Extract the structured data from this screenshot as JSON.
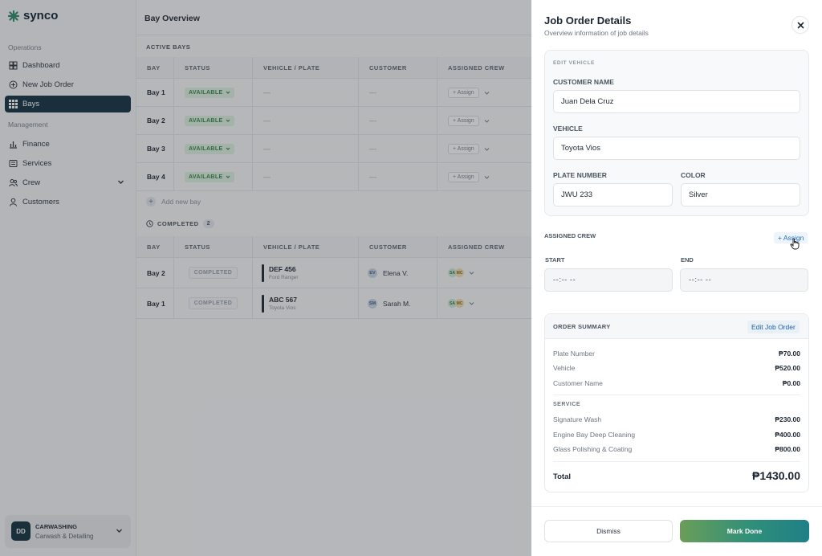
{
  "app": {
    "logo_text": "synco"
  },
  "sidebar": {
    "section_operations": "Operations",
    "section_management": "Management",
    "items": [
      {
        "label": "Dashboard",
        "icon": "dashboard-icon"
      },
      {
        "label": "New Job Order",
        "icon": "plus-circle-icon"
      },
      {
        "label": "Bays",
        "icon": "grid-icon",
        "active": true
      },
      {
        "label": "Finance",
        "icon": "bar-chart-icon"
      },
      {
        "label": "Services",
        "icon": "list-icon"
      },
      {
        "label": "Crew",
        "icon": "users-icon"
      },
      {
        "label": "Customers",
        "icon": "user-icon"
      }
    ],
    "account": {
      "initials": "DD",
      "name": "CARWASHING",
      "subtitle": "Carwash & Detailing"
    }
  },
  "main": {
    "title": "Bay Overview",
    "active_label": "ACTIVE BAYS",
    "columns": [
      "BAY",
      "STATUS",
      "VEHICLE / PLATE",
      "CUSTOMER",
      "ASSIGNED CREW"
    ],
    "active_rows": [
      {
        "bay": "Bay 1",
        "status": "AVAILABLE",
        "vehicle": "—",
        "customer": "—",
        "assign": "+ Assign"
      },
      {
        "bay": "Bay 2",
        "status": "AVAILABLE",
        "vehicle": "—",
        "customer": "—",
        "assign": "+ Assign"
      },
      {
        "bay": "Bay 3",
        "status": "AVAILABLE",
        "vehicle": "—",
        "customer": "—",
        "assign": "+ Assign"
      },
      {
        "bay": "Bay 4",
        "status": "AVAILABLE",
        "vehicle": "—",
        "customer": "—",
        "assign": "+ Assign"
      }
    ],
    "add_bay": "Add new bay",
    "completed_label": "COMPLETED",
    "completed_count": "2",
    "completed_rows": [
      {
        "bay": "Bay 2",
        "status": "COMPLETED",
        "plate": "DEF 456",
        "model": "Ford Ranger",
        "cust_initials": "EV",
        "customer": "Elena V.",
        "crew": [
          "SA",
          "MC"
        ]
      },
      {
        "bay": "Bay 1",
        "status": "COMPLETED",
        "plate": "ABC 567",
        "model": "Toyota Vios",
        "cust_initials": "SM",
        "customer": "Sarah M.",
        "crew": [
          "SA",
          "MC"
        ]
      }
    ]
  },
  "drawer": {
    "title": "Job Order Details",
    "subtitle": "Overview information of job details",
    "edit_caption": "EDIT VEHICLE",
    "customer_label": "CUSTOMER NAME",
    "customer_value": "Juan Dela Cruz",
    "vehicle_label": "VEHICLE",
    "vehicle_value": "Toyota Vios",
    "plate_label": "PLATE NUMBER",
    "plate_value": "JWU 233",
    "color_label": "COLOR",
    "color_value": "Silver",
    "assigned_crew_label": "ASSIGNED CREW",
    "assign_link": "+ Assign",
    "start_label": "START",
    "end_label": "END",
    "start_value": "--:-- --",
    "end_value": "--:-- --",
    "summary": {
      "title": "ORDER SUMMARY",
      "edit_label": "Edit Job Order",
      "items": [
        {
          "k": "Plate Number",
          "v": "₱70.00"
        },
        {
          "k": "Vehicle",
          "v": "₱520.00"
        },
        {
          "k": "Customer Name",
          "v": "₱0.00"
        }
      ],
      "service_label": "SERVICE",
      "services": [
        {
          "k": "Signature Wash",
          "v": "₱230.00"
        },
        {
          "k": "Engine Bay Deep Cleaning",
          "v": "₱400.00"
        },
        {
          "k": "Glass Polishing & Coating",
          "v": "₱800.00"
        }
      ],
      "total_label": "Total",
      "total_value": "₱1430.00"
    },
    "dismiss_label": "Dismiss",
    "done_label": "Mark Done"
  },
  "colors": {
    "primary": "#123240",
    "accent_green": "#2f8a45",
    "link_blue": "#1e6fbe",
    "done_gradient_start": "#6a9e58",
    "done_gradient_end": "#1f7f86"
  }
}
